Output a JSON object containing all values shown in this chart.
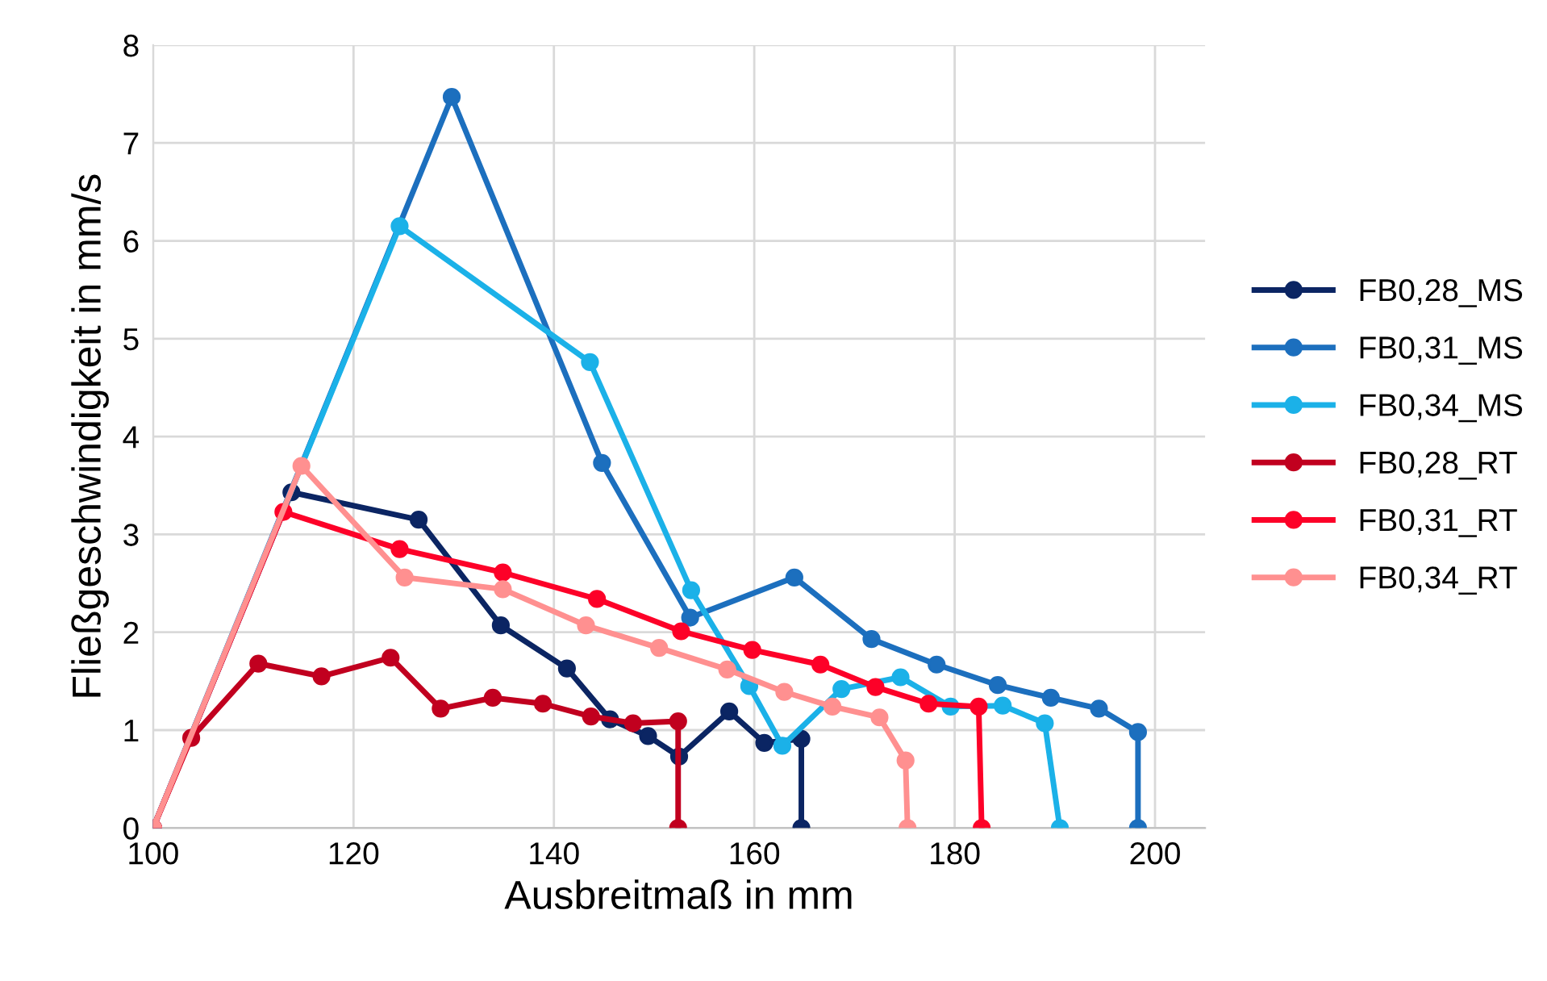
{
  "chart_data": {
    "type": "line",
    "xlabel": "Ausbreitmaß in mm",
    "ylabel": "Fließgeschwindigkeit in mm/s",
    "xlim": [
      100,
      205
    ],
    "xticks": [
      100,
      120,
      140,
      160,
      180,
      200
    ],
    "ylim": [
      0,
      8
    ],
    "yticks": [
      0,
      1,
      2,
      3,
      4,
      5,
      6,
      7,
      8
    ],
    "grid": true,
    "legend": "right",
    "marker": "circle",
    "line_style": "solid",
    "series": [
      {
        "name": "FB0,28_MS",
        "color": "#0b2563",
        "x": [
          100,
          113.8,
          126.5,
          134.7,
          141.3,
          145.6,
          149.4,
          152.5,
          157.5,
          161.0,
          164.7,
          164.7
        ],
        "values": [
          0,
          3.43,
          3.15,
          2.07,
          1.63,
          1.11,
          0.94,
          0.73,
          1.19,
          0.87,
          0.91,
          0
        ]
      },
      {
        "name": "FB0,31_MS",
        "color": "#1c6fbe",
        "x": [
          100,
          129.8,
          144.8,
          153.6,
          164.0,
          171.7,
          178.2,
          184.3,
          189.6,
          194.4,
          198.3,
          198.3
        ],
        "values": [
          0,
          7.47,
          3.73,
          2.15,
          2.56,
          1.93,
          1.67,
          1.46,
          1.33,
          1.22,
          0.98,
          0
        ]
      },
      {
        "name": "FB0,34_MS",
        "color": "#1bb1e8",
        "x": [
          100,
          124.6,
          143.6,
          153.7,
          159.5,
          162.8,
          168.7,
          174.6,
          179.6,
          184.8,
          189.0,
          190.5
        ],
        "values": [
          0,
          6.15,
          4.76,
          2.43,
          1.45,
          0.84,
          1.42,
          1.54,
          1.24,
          1.25,
          1.07,
          0
        ]
      },
      {
        "name": "FB0,28_RT",
        "color": "#c1001f",
        "x": [
          100,
          103.8,
          110.5,
          116.8,
          123.7,
          128.7,
          133.9,
          138.9,
          143.7,
          147.9,
          152.4,
          152.4
        ],
        "values": [
          0,
          0.92,
          1.68,
          1.55,
          1.74,
          1.22,
          1.33,
          1.27,
          1.14,
          1.07,
          1.09,
          0
        ]
      },
      {
        "name": "FB0,31_RT",
        "color": "#fd0128",
        "x": [
          100,
          113.0,
          124.6,
          134.9,
          144.3,
          152.7,
          159.8,
          166.6,
          172.1,
          177.4,
          182.4,
          182.7
        ],
        "values": [
          0,
          3.23,
          2.85,
          2.61,
          2.34,
          2.01,
          1.82,
          1.67,
          1.44,
          1.27,
          1.24,
          0
        ]
      },
      {
        "name": "FB0,34_RT",
        "color": "#ff9090",
        "x": [
          100,
          114.8,
          125.1,
          134.9,
          143.2,
          150.5,
          157.3,
          163.0,
          167.8,
          172.5,
          175.1,
          175.3
        ],
        "values": [
          0,
          3.7,
          2.56,
          2.44,
          2.07,
          1.84,
          1.62,
          1.39,
          1.24,
          1.13,
          0.69,
          0
        ]
      }
    ]
  }
}
